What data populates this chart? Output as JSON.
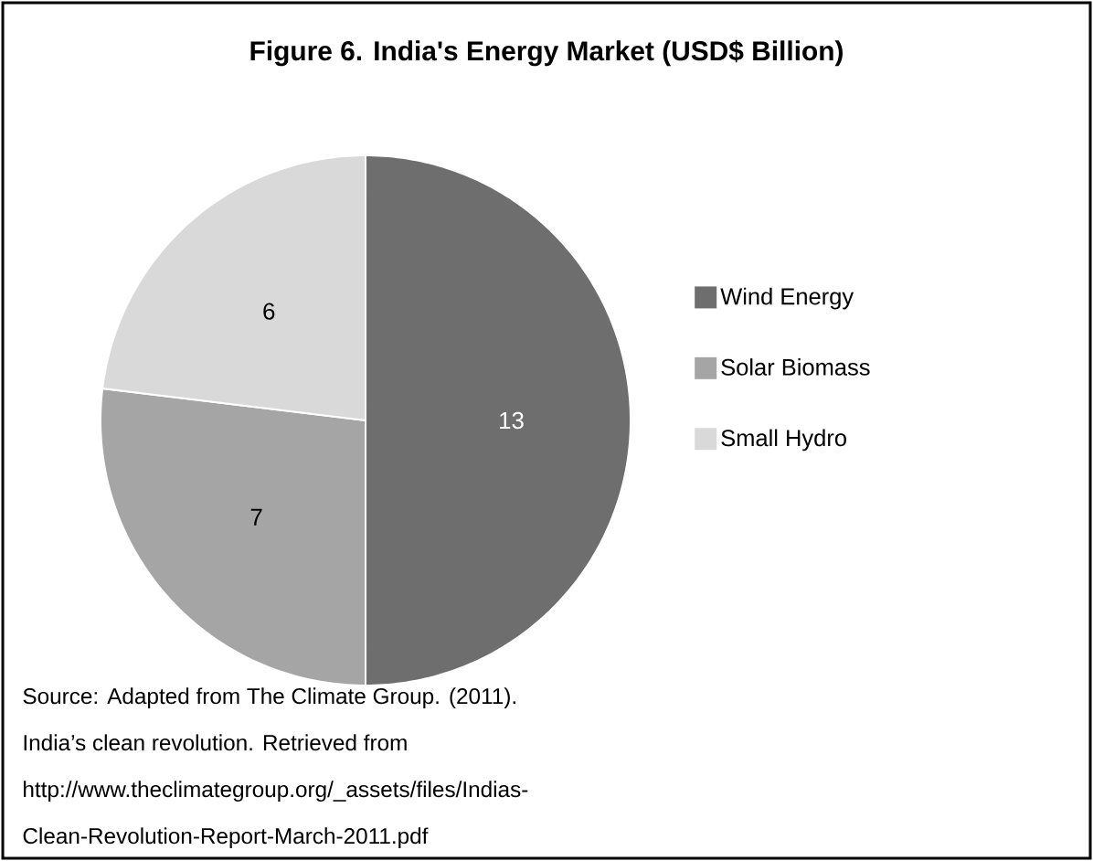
{
  "chart_data": {
    "type": "pie",
    "title": "Figure 6. India's Energy Market (USD$ Billion)",
    "categories": [
      "Wind Energy",
      "Solar Biomass",
      "Small Hydro"
    ],
    "values": [
      13,
      7,
      6
    ],
    "colors": [
      "#6e6e6e",
      "#a5a5a5",
      "#d9d9d9"
    ],
    "data_labels": true,
    "legend": "right",
    "annotations": [
      "Source: Adapted from The Climate Group. (2011).",
      "India’s clean revolution. Retrieved from",
      "http://www.theclimategroup.org/_assets/files/Indias-",
      "Clean-Revolution-Report-March-2011.pdf"
    ]
  }
}
